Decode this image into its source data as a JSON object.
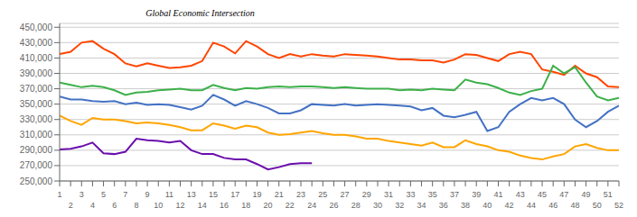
{
  "chart_data": {
    "type": "line",
    "annotations": [
      "Global Economic Intersection"
    ],
    "x": [
      1,
      2,
      3,
      4,
      5,
      6,
      7,
      8,
      9,
      10,
      11,
      12,
      13,
      14,
      15,
      16,
      17,
      18,
      19,
      20,
      21,
      22,
      23,
      24,
      25,
      26,
      27,
      28,
      29,
      30,
      31,
      32,
      33,
      34,
      35,
      36,
      37,
      38,
      39,
      40,
      41,
      42,
      43,
      44,
      45,
      46,
      47,
      48,
      49,
      50,
      51,
      52
    ],
    "xlim": [
      1,
      52
    ],
    "xticks": [
      1,
      2,
      3,
      4,
      5,
      6,
      7,
      8,
      9,
      10,
      11,
      12,
      13,
      14,
      15,
      16,
      17,
      18,
      19,
      20,
      21,
      22,
      23,
      24,
      25,
      26,
      27,
      28,
      29,
      30,
      31,
      32,
      33,
      34,
      35,
      36,
      37,
      38,
      39,
      40,
      41,
      42,
      43,
      44,
      45,
      46,
      47,
      48,
      49,
      50,
      51,
      52
    ],
    "ylim": [
      250000,
      455000
    ],
    "yticks": [
      {
        "value": 250000,
        "label": "250,000"
      },
      {
        "value": 270000,
        "label": "270,000"
      },
      {
        "value": 290000,
        "label": "290,000"
      },
      {
        "value": 310000,
        "label": "310,000"
      },
      {
        "value": 330000,
        "label": "330,000"
      },
      {
        "value": 350000,
        "label": "350,000"
      },
      {
        "value": 370000,
        "label": "370,000"
      },
      {
        "value": 390000,
        "label": "390,000"
      },
      {
        "value": 410000,
        "label": "410,000"
      },
      {
        "value": 430000,
        "label": "430,000"
      },
      {
        "value": 450000,
        "label": "450,000"
      }
    ],
    "grid": true,
    "series": [
      {
        "color": "#FF4500",
        "values": [
          415000,
          418000,
          430000,
          432000,
          422000,
          415000,
          403000,
          399000,
          403000,
          400000,
          397000,
          398000,
          400000,
          406000,
          430000,
          425000,
          416000,
          432000,
          425000,
          415000,
          410000,
          415000,
          412000,
          415000,
          413000,
          412000,
          415000,
          414000,
          413000,
          412000,
          410000,
          408000,
          408000,
          407000,
          407000,
          404000,
          408000,
          415000,
          414000,
          410000,
          406000,
          415000,
          418000,
          415000,
          395000,
          392000,
          388000,
          400000,
          390000,
          385000,
          373000,
          372000
        ]
      },
      {
        "color": "#3CB04A",
        "values": [
          378000,
          375000,
          372000,
          374000,
          372000,
          368000,
          362000,
          365000,
          366000,
          368000,
          369000,
          370000,
          368000,
          368000,
          375000,
          371000,
          368000,
          371000,
          370000,
          372000,
          373000,
          372000,
          373000,
          373000,
          372000,
          371000,
          372000,
          371000,
          370000,
          370000,
          370000,
          368000,
          369000,
          368000,
          370000,
          369000,
          368000,
          382000,
          378000,
          376000,
          371000,
          365000,
          362000,
          367000,
          370000,
          400000,
          390000,
          398000,
          378000,
          360000,
          355000,
          358000
        ]
      },
      {
        "color": "#4472C4",
        "values": [
          360000,
          356000,
          356000,
          354000,
          353000,
          354000,
          350000,
          352000,
          349000,
          350000,
          349000,
          346000,
          343000,
          348000,
          362000,
          356000,
          348000,
          354000,
          350000,
          345000,
          338000,
          338000,
          342000,
          350000,
          349000,
          348000,
          350000,
          348000,
          349000,
          350000,
          349000,
          348000,
          347000,
          342000,
          345000,
          335000,
          333000,
          336000,
          340000,
          315000,
          320000,
          340000,
          350000,
          358000,
          355000,
          358000,
          350000,
          330000,
          320000,
          328000,
          340000,
          348000
        ]
      },
      {
        "color": "#FFA500",
        "values": [
          335000,
          328000,
          323000,
          332000,
          330000,
          330000,
          328000,
          325000,
          326000,
          325000,
          323000,
          320000,
          316000,
          316000,
          325000,
          322000,
          318000,
          322000,
          320000,
          313000,
          310000,
          311000,
          313000,
          315000,
          312000,
          310000,
          310000,
          308000,
          305000,
          305000,
          302000,
          300000,
          298000,
          296000,
          300000,
          294000,
          294000,
          303000,
          298000,
          295000,
          290000,
          288000,
          283000,
          280000,
          278000,
          282000,
          285000,
          295000,
          298000,
          293000,
          290000,
          290000
        ]
      },
      {
        "color": "#6A0DAD",
        "values": [
          291000,
          292000,
          295000,
          300000,
          286000,
          285000,
          288000,
          305000,
          303000,
          302000,
          300000,
          302000,
          290000,
          285000,
          285000,
          280000,
          278000,
          278000,
          272000,
          265000,
          268000,
          272000,
          273000,
          273000,
          null,
          null,
          null,
          null,
          null,
          null,
          null,
          null,
          null,
          null,
          null,
          null,
          null,
          null,
          null,
          null,
          null,
          null,
          null,
          null,
          null,
          null,
          null,
          null,
          null,
          null,
          null,
          null
        ]
      }
    ]
  }
}
